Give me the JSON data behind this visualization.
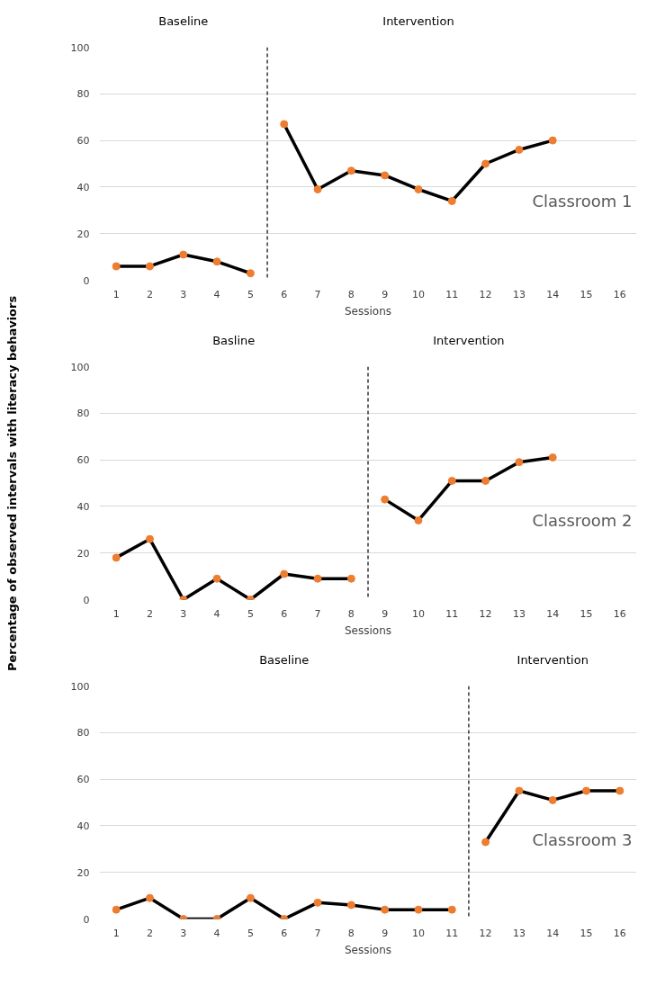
{
  "chart_data": [
    {
      "type": "line",
      "xlabel": "Sessions",
      "xlim": [
        0.5,
        16.5
      ],
      "xticks": [
        1,
        2,
        3,
        4,
        5,
        6,
        7,
        8,
        9,
        10,
        11,
        12,
        13,
        14,
        15,
        16
      ],
      "ylim": [
        0,
        100
      ],
      "yticks": [
        0,
        20,
        40,
        60,
        80,
        100
      ],
      "grid": "y",
      "marker": "circle",
      "line_style": "solid",
      "series": [
        {
          "color": "#ed7d31",
          "x": [
            1,
            2,
            3,
            4,
            5
          ],
          "values": [
            6,
            6,
            11,
            8,
            3
          ]
        },
        {
          "color": "#ed7d31",
          "x": [
            6,
            7,
            8,
            9,
            10,
            11,
            12,
            13,
            14
          ],
          "values": [
            67,
            39,
            47,
            45,
            39,
            34,
            50,
            56,
            60
          ]
        }
      ],
      "ref_lines": [
        {
          "axis": "x",
          "value": 5.5,
          "line_style": "dashed",
          "color": "#000000"
        }
      ],
      "annotations": [
        "Baseline",
        "Intervention",
        "Classroom 1"
      ]
    },
    {
      "type": "line",
      "xlabel": "Sessions",
      "ylabel": "Percentage of observed intervals with literacy behaviors",
      "xlim": [
        0.5,
        16.5
      ],
      "xticks": [
        1,
        2,
        3,
        4,
        5,
        6,
        7,
        8,
        9,
        10,
        11,
        12,
        13,
        14,
        15,
        16
      ],
      "ylim": [
        0,
        100
      ],
      "yticks": [
        0,
        20,
        40,
        60,
        80,
        100
      ],
      "grid": "y",
      "marker": "circle",
      "line_style": "solid",
      "series": [
        {
          "color": "#ed7d31",
          "x": [
            1,
            2,
            3,
            4,
            5,
            6,
            7,
            8
          ],
          "values": [
            18,
            26,
            0,
            9,
            0,
            11,
            9,
            9
          ]
        },
        {
          "color": "#ed7d31",
          "x": [
            9,
            10,
            11,
            12,
            13,
            14
          ],
          "values": [
            43,
            34,
            51,
            51,
            59,
            61
          ]
        }
      ],
      "ref_lines": [
        {
          "axis": "x",
          "value": 8.5,
          "line_style": "dashed",
          "color": "#000000"
        }
      ],
      "annotations": [
        "Basline",
        "Intervention",
        "Classroom 2"
      ]
    },
    {
      "type": "line",
      "xlabel": "Sessions",
      "xlim": [
        0.5,
        16.5
      ],
      "xticks": [
        1,
        2,
        3,
        4,
        5,
        6,
        7,
        8,
        9,
        10,
        11,
        12,
        13,
        14,
        15,
        16
      ],
      "ylim": [
        0,
        100
      ],
      "yticks": [
        0,
        20,
        40,
        60,
        80,
        100
      ],
      "grid": "y",
      "marker": "circle",
      "line_style": "solid",
      "series": [
        {
          "color": "#ed7d31",
          "x": [
            1,
            2,
            3,
            4,
            5,
            6,
            7,
            8,
            9,
            10,
            11
          ],
          "values": [
            4,
            9,
            0,
            0,
            9,
            0,
            7,
            6,
            4,
            4,
            4
          ]
        },
        {
          "color": "#ed7d31",
          "x": [
            12,
            13,
            14,
            15,
            16
          ],
          "values": [
            33,
            55,
            51,
            55,
            55
          ]
        }
      ],
      "ref_lines": [
        {
          "axis": "x",
          "value": 11.5,
          "line_style": "dashed",
          "color": "#000000"
        }
      ],
      "annotations": [
        "Baseline",
        "Intervention",
        "Classroom 3"
      ]
    }
  ]
}
